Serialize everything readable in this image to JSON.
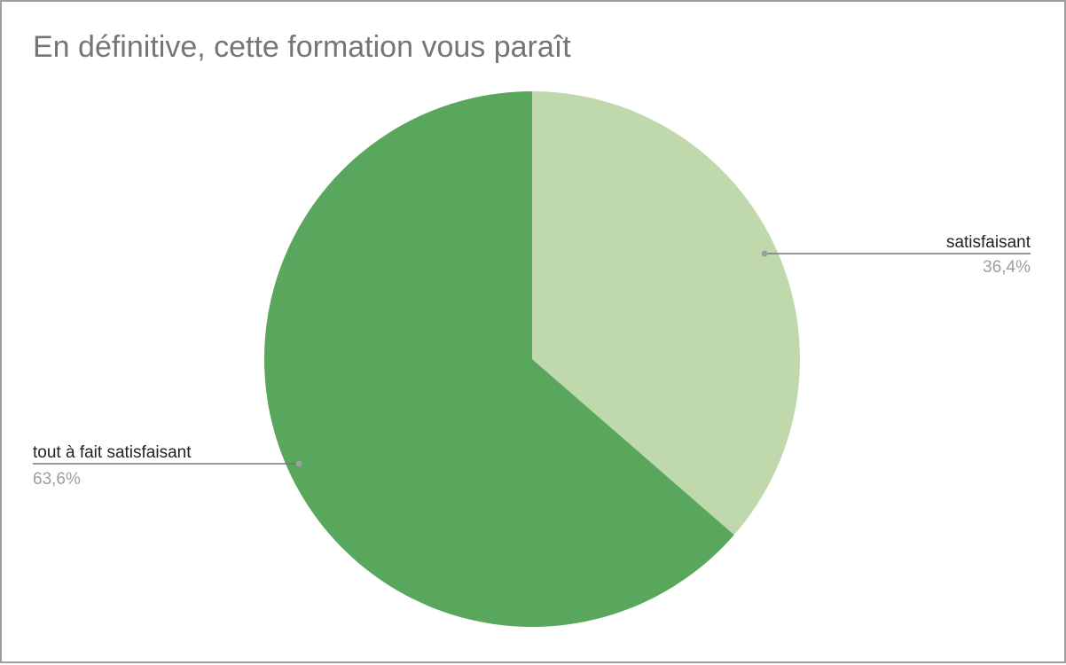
{
  "chart_data": {
    "type": "pie",
    "title": "En définitive, cette formation vous paraît",
    "slices": [
      {
        "label": "satisfaisant",
        "value": 36.4,
        "value_label": "36,4%",
        "color": "#bfd9ad"
      },
      {
        "label": "tout à fait satisfaisant",
        "value": 63.6,
        "value_label": "63,6%",
        "color": "#59a65d"
      }
    ],
    "start_angle_deg": 0,
    "direction": "clockwise",
    "legend": "none (slice labels with leader lines)"
  }
}
